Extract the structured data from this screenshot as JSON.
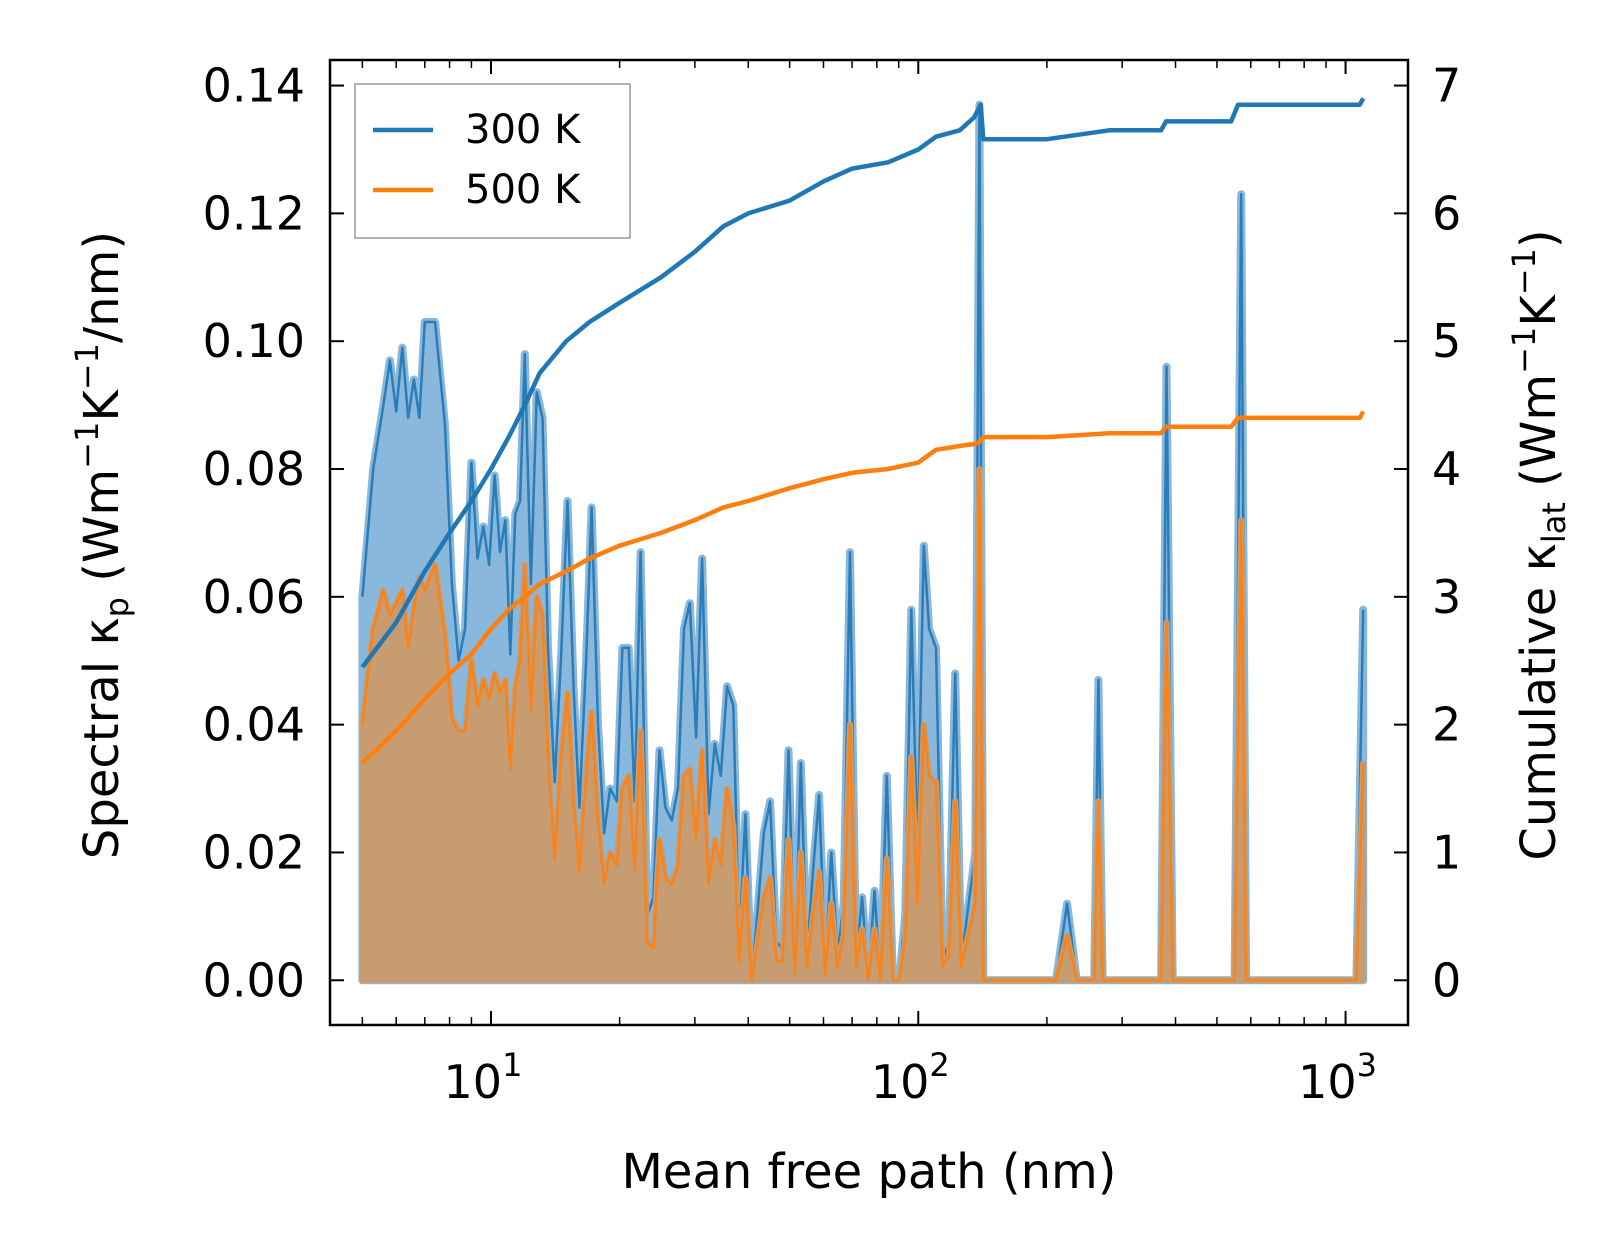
{
  "chart_data": {
    "type": "line",
    "xscale": "log",
    "xlabel": "Mean free path (nm)",
    "ylabel_left": {
      "main": "Spectral κ",
      "sub": "p",
      "units_pre": " (Wm",
      "sup1": "−1",
      "mid": "K",
      "sup2": "−1",
      "units_post": "/nm)"
    },
    "ylabel_right": {
      "main": "Cumulative κ",
      "sub": "lat",
      "units_pre": " (Wm",
      "sup1": "−1",
      "mid": "K",
      "sup2": "−1",
      "units_post": ")"
    },
    "xlim": [
      4.2,
      1400
    ],
    "ylim_left": [
      -0.007,
      0.144
    ],
    "ylim_right": [
      -0.35,
      7.2
    ],
    "xticks": [
      {
        "value": 10,
        "base": "10",
        "exp": "1"
      },
      {
        "value": 100,
        "base": "10",
        "exp": "2"
      },
      {
        "value": 1000,
        "base": "10",
        "exp": "3"
      }
    ],
    "yticks_left": [
      "0.00",
      "0.02",
      "0.04",
      "0.06",
      "0.08",
      "0.10",
      "0.12",
      "0.14"
    ],
    "yticks_right": [
      "0",
      "1",
      "2",
      "3",
      "4",
      "5",
      "6",
      "7"
    ],
    "colors": {
      "s300": "#1f77b4",
      "s500": "#ff7f0e",
      "fill300": "#8ab8dc",
      "fill500": "#c69c70"
    },
    "legend": {
      "placement": "top-left",
      "entries": [
        "300 K",
        "500 K"
      ]
    },
    "spectral": {
      "300 K": [
        [
          5,
          0.06
        ],
        [
          5.3,
          0.08
        ],
        [
          5.6,
          0.09
        ],
        [
          5.8,
          0.097
        ],
        [
          6.0,
          0.089
        ],
        [
          6.2,
          0.099
        ],
        [
          6.4,
          0.088
        ],
        [
          6.6,
          0.094
        ],
        [
          6.8,
          0.088
        ],
        [
          7.0,
          0.103
        ],
        [
          7.4,
          0.103
        ],
        [
          7.8,
          0.087
        ],
        [
          8.1,
          0.062
        ],
        [
          8.4,
          0.05
        ],
        [
          8.7,
          0.055
        ],
        [
          9.0,
          0.081
        ],
        [
          9.3,
          0.066
        ],
        [
          9.6,
          0.071
        ],
        [
          9.9,
          0.065
        ],
        [
          10.2,
          0.079
        ],
        [
          10.5,
          0.067
        ],
        [
          10.8,
          0.072
        ],
        [
          11.1,
          0.051
        ],
        [
          11.4,
          0.073
        ],
        [
          11.7,
          0.075
        ],
        [
          12.0,
          0.098
        ],
        [
          12.4,
          0.062
        ],
        [
          12.8,
          0.092
        ],
        [
          13.2,
          0.088
        ],
        [
          13.6,
          0.052
        ],
        [
          14.1,
          0.031
        ],
        [
          14.6,
          0.051
        ],
        [
          15.1,
          0.075
        ],
        [
          15.6,
          0.046
        ],
        [
          16.1,
          0.027
        ],
        [
          16.7,
          0.05
        ],
        [
          17.2,
          0.074
        ],
        [
          17.8,
          0.04
        ],
        [
          18.4,
          0.023
        ],
        [
          19.0,
          0.03
        ],
        [
          19.7,
          0.028
        ],
        [
          20.3,
          0.052
        ],
        [
          21.0,
          0.052
        ],
        [
          21.7,
          0.028
        ],
        [
          22.4,
          0.067
        ],
        [
          23.2,
          0.01
        ],
        [
          24.0,
          0.013
        ],
        [
          24.8,
          0.036
        ],
        [
          25.6,
          0.027
        ],
        [
          26.5,
          0.025
        ],
        [
          27.4,
          0.03
        ],
        [
          28.3,
          0.055
        ],
        [
          29.2,
          0.059
        ],
        [
          30.2,
          0.038
        ],
        [
          31.2,
          0.066
        ],
        [
          32.3,
          0.026
        ],
        [
          33.4,
          0.037
        ],
        [
          34.5,
          0.032
        ],
        [
          35.7,
          0.046
        ],
        [
          36.9,
          0.043
        ],
        [
          38.1,
          0.006
        ],
        [
          39.4,
          0.026
        ],
        [
          40.7,
          0.0
        ],
        [
          42.1,
          0.011
        ],
        [
          43.5,
          0.023
        ],
        [
          45.0,
          0.028
        ],
        [
          46.5,
          0.006
        ],
        [
          48.1,
          0.005
        ],
        [
          49.7,
          0.036
        ],
        [
          51.4,
          0.001
        ],
        [
          53.1,
          0.034
        ],
        [
          54.9,
          0.004
        ],
        [
          56.7,
          0.017
        ],
        [
          58.6,
          0.029
        ],
        [
          60.6,
          0.002
        ],
        [
          62.6,
          0.02
        ],
        [
          64.7,
          0.004
        ],
        [
          66.9,
          0.012
        ],
        [
          69.2,
          0.067
        ],
        [
          71.5,
          0.003
        ],
        [
          73.9,
          0.013
        ],
        [
          76.4,
          0.0
        ],
        [
          79.0,
          0.014
        ],
        [
          81.6,
          0.0
        ],
        [
          84.4,
          0.032
        ],
        [
          87.2,
          0.0
        ],
        [
          90.2,
          0.0
        ],
        [
          93.2,
          0.01
        ],
        [
          96.3,
          0.058
        ],
        [
          99.6,
          0.02
        ],
        [
          103,
          0.068
        ],
        [
          106,
          0.055
        ],
        [
          110,
          0.052
        ],
        [
          114,
          0.003
        ],
        [
          118,
          0.006
        ],
        [
          122,
          0.048
        ],
        [
          126,
          0.003
        ],
        [
          136,
          0.02
        ],
        [
          139,
          0.137
        ],
        [
          142,
          0.0
        ],
        [
          210,
          0.0
        ],
        [
          223,
          0.012
        ],
        [
          235,
          0.0
        ],
        [
          258,
          0.0
        ],
        [
          264,
          0.047
        ],
        [
          270,
          0.0
        ],
        [
          370,
          0.0
        ],
        [
          381,
          0.096
        ],
        [
          394,
          0.0
        ],
        [
          550,
          0.0
        ],
        [
          570,
          0.123
        ],
        [
          585,
          0.0
        ],
        [
          1060,
          0.0
        ],
        [
          1100,
          0.058
        ]
      ],
      "500 K": [
        [
          5,
          0.04
        ],
        [
          5.3,
          0.055
        ],
        [
          5.6,
          0.061
        ],
        [
          5.8,
          0.057
        ],
        [
          6.0,
          0.059
        ],
        [
          6.2,
          0.061
        ],
        [
          6.4,
          0.052
        ],
        [
          6.6,
          0.058
        ],
        [
          6.8,
          0.063
        ],
        [
          7.0,
          0.061
        ],
        [
          7.4,
          0.065
        ],
        [
          7.8,
          0.054
        ],
        [
          8.1,
          0.041
        ],
        [
          8.4,
          0.039
        ],
        [
          8.7,
          0.039
        ],
        [
          9.0,
          0.05
        ],
        [
          9.3,
          0.043
        ],
        [
          9.6,
          0.047
        ],
        [
          9.9,
          0.044
        ],
        [
          10.2,
          0.048
        ],
        [
          10.5,
          0.045
        ],
        [
          10.8,
          0.047
        ],
        [
          11.1,
          0.033
        ],
        [
          11.4,
          0.046
        ],
        [
          11.7,
          0.05
        ],
        [
          12.0,
          0.065
        ],
        [
          12.4,
          0.042
        ],
        [
          12.8,
          0.06
        ],
        [
          13.2,
          0.057
        ],
        [
          13.6,
          0.035
        ],
        [
          14.1,
          0.019
        ],
        [
          14.6,
          0.035
        ],
        [
          15.1,
          0.045
        ],
        [
          15.6,
          0.028
        ],
        [
          16.1,
          0.017
        ],
        [
          16.7,
          0.032
        ],
        [
          17.2,
          0.042
        ],
        [
          17.8,
          0.025
        ],
        [
          18.4,
          0.015
        ],
        [
          19.0,
          0.02
        ],
        [
          19.7,
          0.018
        ],
        [
          20.3,
          0.03
        ],
        [
          21.0,
          0.032
        ],
        [
          21.7,
          0.017
        ],
        [
          22.4,
          0.039
        ],
        [
          23.2,
          0.006
        ],
        [
          24.0,
          0.005
        ],
        [
          24.8,
          0.022
        ],
        [
          25.6,
          0.016
        ],
        [
          26.5,
          0.015
        ],
        [
          27.4,
          0.018
        ],
        [
          28.3,
          0.032
        ],
        [
          29.2,
          0.033
        ],
        [
          30.2,
          0.022
        ],
        [
          31.2,
          0.036
        ],
        [
          32.3,
          0.015
        ],
        [
          33.4,
          0.022
        ],
        [
          34.5,
          0.018
        ],
        [
          35.7,
          0.03
        ],
        [
          36.9,
          0.024
        ],
        [
          38.1,
          0.003
        ],
        [
          39.4,
          0.016
        ],
        [
          40.7,
          0.0
        ],
        [
          42.1,
          0.006
        ],
        [
          43.5,
          0.013
        ],
        [
          45.0,
          0.016
        ],
        [
          46.5,
          0.003
        ],
        [
          48.1,
          0.003
        ],
        [
          49.7,
          0.022
        ],
        [
          51.4,
          0.001
        ],
        [
          53.1,
          0.02
        ],
        [
          54.9,
          0.002
        ],
        [
          56.7,
          0.01
        ],
        [
          58.6,
          0.017
        ],
        [
          60.6,
          0.001
        ],
        [
          62.6,
          0.012
        ],
        [
          64.7,
          0.002
        ],
        [
          66.9,
          0.007
        ],
        [
          69.2,
          0.04
        ],
        [
          71.5,
          0.002
        ],
        [
          73.9,
          0.008
        ],
        [
          76.4,
          0.0
        ],
        [
          79.0,
          0.008
        ],
        [
          81.6,
          0.0
        ],
        [
          84.4,
          0.019
        ],
        [
          87.2,
          0.0
        ],
        [
          90.2,
          0.0
        ],
        [
          93.2,
          0.006
        ],
        [
          96.3,
          0.035
        ],
        [
          99.6,
          0.012
        ],
        [
          103,
          0.04
        ],
        [
          106,
          0.032
        ],
        [
          110,
          0.031
        ],
        [
          114,
          0.002
        ],
        [
          118,
          0.004
        ],
        [
          122,
          0.028
        ],
        [
          126,
          0.002
        ],
        [
          136,
          0.012
        ],
        [
          139,
          0.08
        ],
        [
          142,
          0.0
        ],
        [
          210,
          0.0
        ],
        [
          223,
          0.007
        ],
        [
          235,
          0.0
        ],
        [
          258,
          0.0
        ],
        [
          264,
          0.028
        ],
        [
          270,
          0.0
        ],
        [
          370,
          0.0
        ],
        [
          381,
          0.056
        ],
        [
          394,
          0.0
        ],
        [
          550,
          0.0
        ],
        [
          570,
          0.072
        ],
        [
          585,
          0.0
        ],
        [
          1060,
          0.0
        ],
        [
          1100,
          0.034
        ]
      ]
    },
    "cumulative": {
      "300 K": [
        [
          5,
          2.45
        ],
        [
          6,
          2.8
        ],
        [
          7,
          3.2
        ],
        [
          8,
          3.5
        ],
        [
          9,
          3.75
        ],
        [
          10,
          4.0
        ],
        [
          11,
          4.25
        ],
        [
          12,
          4.5
        ],
        [
          13,
          4.75
        ],
        [
          15,
          5.0
        ],
        [
          17,
          5.15
        ],
        [
          20,
          5.3
        ],
        [
          25,
          5.5
        ],
        [
          30,
          5.7
        ],
        [
          35,
          5.9
        ],
        [
          40,
          6.0
        ],
        [
          50,
          6.1
        ],
        [
          60,
          6.25
        ],
        [
          70,
          6.35
        ],
        [
          85,
          6.4
        ],
        [
          100,
          6.5
        ],
        [
          110,
          6.6
        ],
        [
          125,
          6.65
        ],
        [
          135,
          6.75
        ],
        [
          140,
          6.85
        ],
        [
          142,
          6.58
        ],
        [
          200,
          6.58
        ],
        [
          280,
          6.65
        ],
        [
          370,
          6.65
        ],
        [
          380,
          6.72
        ],
        [
          540,
          6.72
        ],
        [
          560,
          6.85
        ],
        [
          1000,
          6.85
        ],
        [
          1080,
          6.85
        ],
        [
          1100,
          6.9
        ]
      ],
      "500 K": [
        [
          5,
          1.7
        ],
        [
          6,
          1.95
        ],
        [
          7,
          2.2
        ],
        [
          8,
          2.4
        ],
        [
          9,
          2.55
        ],
        [
          10,
          2.75
        ],
        [
          11,
          2.9
        ],
        [
          12,
          3.0
        ],
        [
          13,
          3.1
        ],
        [
          15,
          3.2
        ],
        [
          17,
          3.3
        ],
        [
          20,
          3.4
        ],
        [
          25,
          3.5
        ],
        [
          30,
          3.6
        ],
        [
          35,
          3.7
        ],
        [
          40,
          3.75
        ],
        [
          50,
          3.85
        ],
        [
          60,
          3.92
        ],
        [
          70,
          3.97
        ],
        [
          85,
          4.0
        ],
        [
          100,
          4.05
        ],
        [
          110,
          4.15
        ],
        [
          125,
          4.18
        ],
        [
          138,
          4.2
        ],
        [
          142,
          4.25
        ],
        [
          200,
          4.25
        ],
        [
          280,
          4.28
        ],
        [
          370,
          4.28
        ],
        [
          380,
          4.33
        ],
        [
          540,
          4.33
        ],
        [
          560,
          4.4
        ],
        [
          1000,
          4.4
        ],
        [
          1080,
          4.4
        ],
        [
          1100,
          4.45
        ]
      ]
    }
  }
}
